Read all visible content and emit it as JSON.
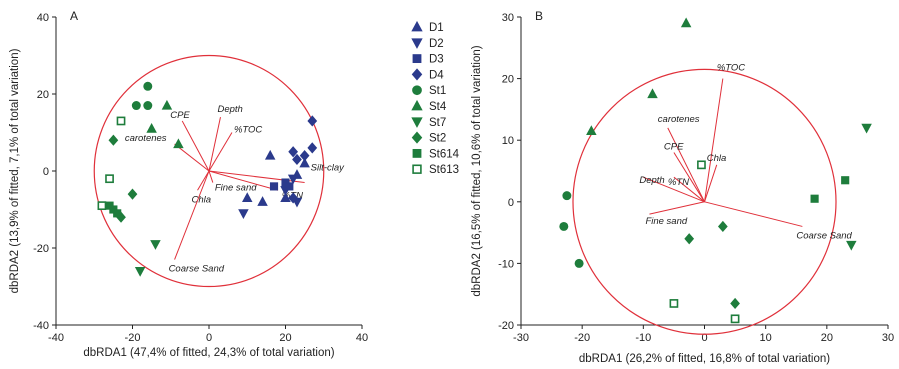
{
  "legend": [
    {
      "label": "D1",
      "shape": "triangle-up",
      "color": "#2b3a8c",
      "fill": true
    },
    {
      "label": "D2",
      "shape": "triangle-down",
      "color": "#2b3a8c",
      "fill": true
    },
    {
      "label": "D3",
      "shape": "square",
      "color": "#2b3a8c",
      "fill": true
    },
    {
      "label": "D4",
      "shape": "diamond",
      "color": "#2b3a8c",
      "fill": true
    },
    {
      "label": "St1",
      "shape": "circle",
      "color": "#1e7d3c",
      "fill": true
    },
    {
      "label": "St4",
      "shape": "triangle-up",
      "color": "#1e7d3c",
      "fill": true
    },
    {
      "label": "St7",
      "shape": "triangle-down",
      "color": "#1e7d3c",
      "fill": true
    },
    {
      "label": "St2",
      "shape": "diamond",
      "color": "#1e7d3c",
      "fill": true
    },
    {
      "label": "St614",
      "shape": "square",
      "color": "#1e7d3c",
      "fill": true
    },
    {
      "label": "St613",
      "shape": "square",
      "color": "#1e7d3c",
      "fill": false
    }
  ],
  "colors": {
    "circle": "#e0303a",
    "vector": "#e0303a",
    "axis": "#222222"
  },
  "chart_data": [
    {
      "type": "scatter",
      "panel_label": "A",
      "xlabel": "dbRDA1 (47,4% of fitted, 24,3% of total variation)",
      "ylabel": "dbRDA2 (13,9% of fitted, 7,1% of total variation)",
      "xlim": [
        -40,
        40
      ],
      "ylim": [
        -40,
        40
      ],
      "xticks": [
        -40,
        -20,
        0,
        20,
        40
      ],
      "yticks": [
        -40,
        -20,
        0,
        20,
        40
      ],
      "circle_radius": 30,
      "vectors": [
        {
          "label": "Depth",
          "x": 3,
          "y": 14
        },
        {
          "label": "CPE",
          "x": -7,
          "y": 13
        },
        {
          "label": "%TOC",
          "x": 6,
          "y": 10
        },
        {
          "label": "carotenes",
          "x": -9,
          "y": 7
        },
        {
          "label": "Silt-clay",
          "x": 25,
          "y": -3
        },
        {
          "label": "Fine sand",
          "x": 1,
          "y": -3
        },
        {
          "label": "%TN",
          "x": 18,
          "y": -5
        },
        {
          "label": "Chla",
          "x": -3,
          "y": -5
        },
        {
          "label": "Coarse Sand",
          "x": -9,
          "y": -23
        }
      ],
      "series": [
        {
          "name": "D1",
          "points": [
            [
              16,
              4
            ],
            [
              25,
              2
            ],
            [
              23,
              -1
            ],
            [
              10,
              -7
            ],
            [
              14,
              -8
            ],
            [
              20,
              -7
            ]
          ]
        },
        {
          "name": "D2",
          "points": [
            [
              9,
              -11
            ],
            [
              22,
              -2
            ],
            [
              20,
              -5
            ],
            [
              23,
              -8
            ]
          ]
        },
        {
          "name": "D3",
          "points": [
            [
              20,
              -3
            ],
            [
              21,
              -4
            ],
            [
              17,
              -4
            ]
          ]
        },
        {
          "name": "D4",
          "points": [
            [
              27,
              13
            ],
            [
              25,
              4
            ],
            [
              22,
              5
            ],
            [
              23,
              3
            ],
            [
              22,
              -7
            ],
            [
              27,
              6
            ]
          ]
        },
        {
          "name": "St1",
          "points": [
            [
              -16,
              22
            ],
            [
              -19,
              17
            ],
            [
              -16,
              17
            ]
          ]
        },
        {
          "name": "St4",
          "points": [
            [
              -11,
              17
            ],
            [
              -15,
              11
            ],
            [
              -8,
              7
            ]
          ]
        },
        {
          "name": "St7",
          "points": [
            [
              -14,
              -19
            ],
            [
              -18,
              -26
            ]
          ]
        },
        {
          "name": "St2",
          "points": [
            [
              -25,
              8
            ],
            [
              -20,
              -6
            ],
            [
              -23,
              -12
            ]
          ]
        },
        {
          "name": "St614",
          "points": [
            [
              -25,
              -10
            ],
            [
              -24,
              -11
            ],
            [
              -26,
              -9
            ]
          ]
        },
        {
          "name": "St613",
          "points": [
            [
              -23,
              13
            ],
            [
              -26,
              -2
            ],
            [
              -28,
              -9
            ]
          ]
        }
      ]
    },
    {
      "type": "scatter",
      "panel_label": "B",
      "xlabel": "dbRDA1 (26,2% of fitted, 16,8% of total variation)",
      "ylabel": "dbRDA2 (16,5% of fitted, 10,6% of total variation)",
      "xlim": [
        -30,
        30
      ],
      "ylim": [
        -20,
        30
      ],
      "xticks": [
        -30,
        -20,
        -10,
        0,
        10,
        20,
        30
      ],
      "yticks": [
        -20,
        -10,
        0,
        10,
        20,
        30
      ],
      "circle_radius": 21.5,
      "vectors": [
        {
          "label": "%TOC",
          "x": 3,
          "y": 20
        },
        {
          "label": "carotenes",
          "x": -6,
          "y": 12
        },
        {
          "label": "CPE",
          "x": -5,
          "y": 8
        },
        {
          "label": "Chla",
          "x": 2,
          "y": 6
        },
        {
          "label": "Depth",
          "x": -10,
          "y": 4
        },
        {
          "label": "%TN",
          "x": -5,
          "y": 4
        },
        {
          "label": "Fine sand",
          "x": -9,
          "y": -2
        },
        {
          "label": "Coarse Sand",
          "x": 16,
          "y": -4
        }
      ],
      "series": [
        {
          "name": "St1",
          "points": [
            [
              -22.5,
              1
            ],
            [
              -23,
              -4
            ],
            [
              -20.5,
              -10
            ]
          ]
        },
        {
          "name": "St4",
          "points": [
            [
              -8.5,
              17.5
            ],
            [
              -3,
              29
            ],
            [
              -18.5,
              11.5
            ]
          ]
        },
        {
          "name": "St7",
          "points": [
            [
              26.5,
              12
            ],
            [
              24,
              -7
            ]
          ]
        },
        {
          "name": "St2",
          "points": [
            [
              -2.5,
              -6
            ],
            [
              3,
              -4
            ],
            [
              5,
              -16.5
            ]
          ]
        },
        {
          "name": "St614",
          "points": [
            [
              18,
              0.5
            ],
            [
              23,
              3.5
            ]
          ]
        },
        {
          "name": "St613",
          "points": [
            [
              -0.5,
              6
            ],
            [
              -5,
              -16.5
            ],
            [
              5,
              -19
            ]
          ]
        }
      ]
    }
  ]
}
